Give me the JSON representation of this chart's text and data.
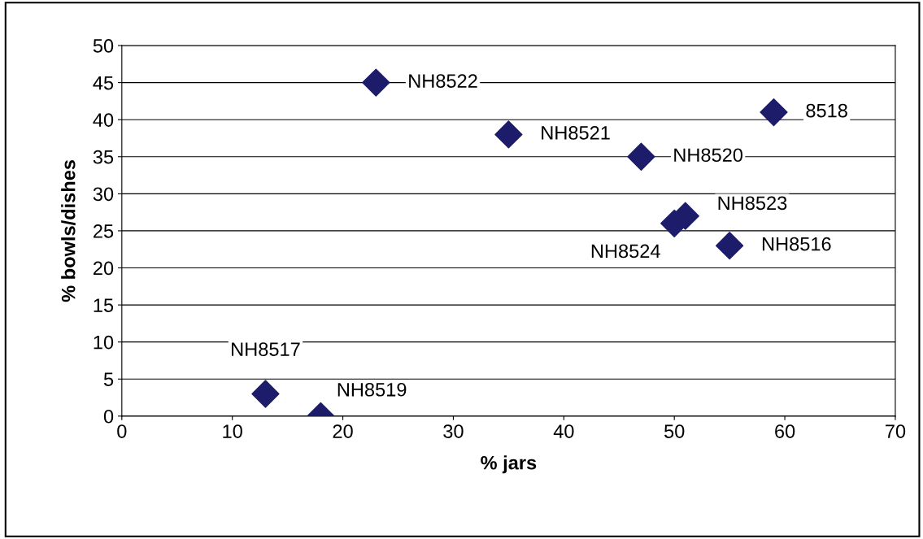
{
  "chart_data": {
    "type": "scatter",
    "xlabel": "% jars",
    "ylabel": "% bowls/dishes",
    "x": [
      23,
      35,
      47,
      59,
      51,
      50,
      55,
      13,
      18
    ],
    "series": [
      {
        "color": "#1c1c6b",
        "values": [
          45,
          38,
          35,
          41,
          27,
          26,
          23,
          3,
          0
        ]
      }
    ],
    "xlim": [
      0,
      70
    ],
    "xticks": [
      0,
      10,
      20,
      30,
      40,
      50,
      60,
      70
    ],
    "ylim": [
      0,
      50
    ],
    "yticks": [
      0,
      5,
      10,
      15,
      20,
      25,
      30,
      35,
      40,
      45,
      50
    ],
    "grid": "y",
    "marker": "diamond",
    "annotations": [
      {
        "text": "NH8522",
        "x": 23,
        "y": 45
      },
      {
        "text": "NH8521",
        "x": 35,
        "y": 38
      },
      {
        "text": "NH8520",
        "x": 47,
        "y": 35
      },
      {
        "text": "8518",
        "x": 59,
        "y": 41
      },
      {
        "text": "NH8523",
        "x": 51,
        "y": 27
      },
      {
        "text": "NH8524",
        "x": 50,
        "y": 26
      },
      {
        "text": "NH8516",
        "x": 55,
        "y": 23
      },
      {
        "text": "NH8517",
        "x": 13,
        "y": 3
      },
      {
        "text": "NH8519",
        "x": 18,
        "y": 0
      }
    ]
  }
}
